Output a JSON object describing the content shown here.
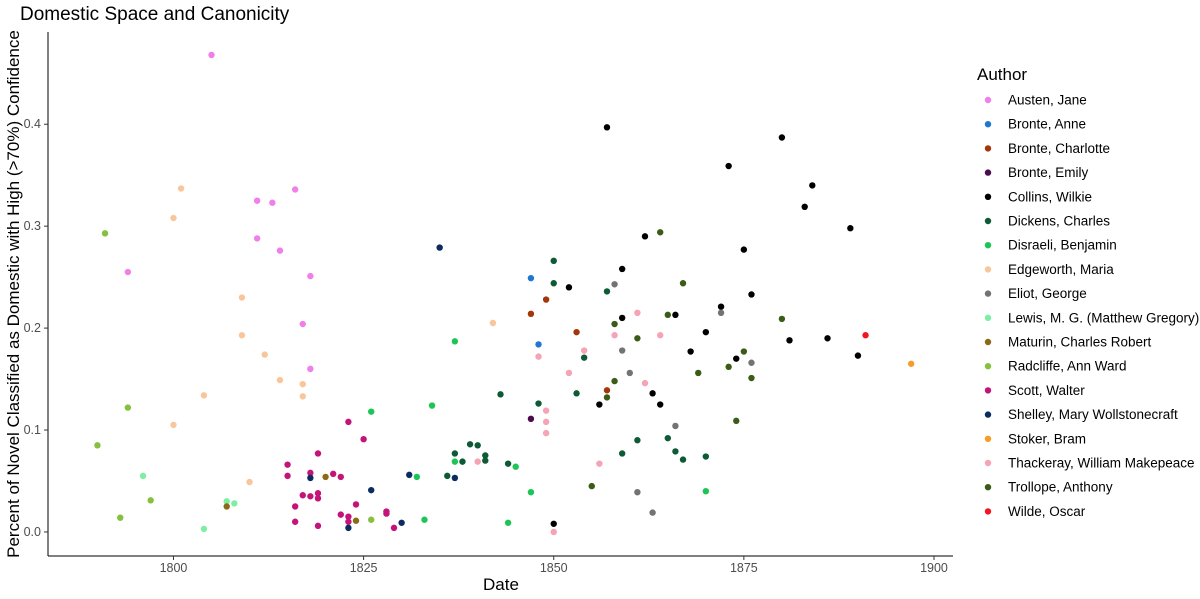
{
  "chart_data": {
    "type": "scatter",
    "title": "Domestic Space and Canonicity",
    "xlabel": "Date",
    "ylabel": "Percent of Novel Classified as Domestic with High (>70%) Confidence",
    "xlim": [
      1783.5,
      1902.5
    ],
    "ylim": [
      -0.0236,
      0.4905
    ],
    "xticks": [
      1800,
      1825,
      1850,
      1875,
      1900
    ],
    "yticks": [
      0.0,
      0.1,
      0.2,
      0.3,
      0.4
    ],
    "ytick_labels": [
      "0.0",
      "0.1",
      "0.2",
      "0.3",
      "0.4"
    ],
    "grid": false,
    "legend_position": "right",
    "legend_title": "Author",
    "series": [
      {
        "name": "Austen, Jane",
        "color": "#F07FEA",
        "points": [
          [
            1805,
            0.468
          ],
          [
            1794,
            0.255
          ],
          [
            1811,
            0.325
          ],
          [
            1813,
            0.323
          ],
          [
            1816,
            0.336
          ],
          [
            1811,
            0.288
          ],
          [
            1814,
            0.276
          ],
          [
            1818,
            0.251
          ],
          [
            1817,
            0.204
          ],
          [
            1818,
            0.16
          ]
        ]
      },
      {
        "name": "Bronte, Anne",
        "color": "#1F76D3",
        "points": [
          [
            1847,
            0.249
          ],
          [
            1848,
            0.184
          ]
        ]
      },
      {
        "name": "Bronte, Charlotte",
        "color": "#A3360B",
        "points": [
          [
            1847,
            0.214
          ],
          [
            1849,
            0.228
          ],
          [
            1853,
            0.196
          ],
          [
            1857,
            0.139
          ]
        ]
      },
      {
        "name": "Bronte, Emily",
        "color": "#4C0B4D",
        "points": [
          [
            1847,
            0.111
          ]
        ]
      },
      {
        "name": "Collins, Wilkie",
        "color": "#000000",
        "points": [
          [
            1857,
            0.397
          ],
          [
            1852,
            0.24
          ],
          [
            1859,
            0.258
          ],
          [
            1862,
            0.29
          ],
          [
            1859,
            0.21
          ],
          [
            1856,
            0.125
          ],
          [
            1863,
            0.136
          ],
          [
            1864,
            0.125
          ],
          [
            1866,
            0.213
          ],
          [
            1868,
            0.177
          ],
          [
            1870,
            0.196
          ],
          [
            1872,
            0.221
          ],
          [
            1873,
            0.359
          ],
          [
            1874,
            0.17
          ],
          [
            1875,
            0.277
          ],
          [
            1876,
            0.233
          ],
          [
            1880,
            0.387
          ],
          [
            1881,
            0.188
          ],
          [
            1883,
            0.319
          ],
          [
            1884,
            0.34
          ],
          [
            1886,
            0.19
          ],
          [
            1889,
            0.298
          ],
          [
            1890,
            0.173
          ],
          [
            1850,
            0.008
          ]
        ]
      },
      {
        "name": "Dickens, Charles",
        "color": "#0C5B35",
        "points": [
          [
            1836,
            0.055
          ],
          [
            1837,
            0.077
          ],
          [
            1838,
            0.069
          ],
          [
            1839,
            0.086
          ],
          [
            1840,
            0.085
          ],
          [
            1841,
            0.075
          ],
          [
            1841,
            0.07
          ],
          [
            1843,
            0.135
          ],
          [
            1844,
            0.067
          ],
          [
            1848,
            0.126
          ],
          [
            1850,
            0.266
          ],
          [
            1850,
            0.244
          ],
          [
            1853,
            0.136
          ],
          [
            1854,
            0.171
          ],
          [
            1857,
            0.236
          ],
          [
            1859,
            0.077
          ],
          [
            1861,
            0.09
          ],
          [
            1865,
            0.092
          ],
          [
            1866,
            0.079
          ],
          [
            1867,
            0.071
          ],
          [
            1870,
            0.074
          ]
        ]
      },
      {
        "name": "Disraeli, Benjamin",
        "color": "#1DC456",
        "points": [
          [
            1826,
            0.118
          ],
          [
            1832,
            0.054
          ],
          [
            1833,
            0.012
          ],
          [
            1834,
            0.124
          ],
          [
            1837,
            0.187
          ],
          [
            1837,
            0.069
          ],
          [
            1844,
            0.009
          ],
          [
            1845,
            0.064
          ],
          [
            1847,
            0.039
          ],
          [
            1870,
            0.04
          ]
        ]
      },
      {
        "name": "Edgeworth, Maria",
        "color": "#F9C69B",
        "points": [
          [
            1801,
            0.337
          ],
          [
            1800,
            0.308
          ],
          [
            1809,
            0.23
          ],
          [
            1809,
            0.193
          ],
          [
            1812,
            0.174
          ],
          [
            1814,
            0.149
          ],
          [
            1817,
            0.145
          ],
          [
            1817,
            0.133
          ],
          [
            1804,
            0.134
          ],
          [
            1800,
            0.105
          ],
          [
            1810,
            0.049
          ],
          [
            1842,
            0.205
          ]
        ]
      },
      {
        "name": "Eliot, George",
        "color": "#737373",
        "points": [
          [
            1858,
            0.243
          ],
          [
            1859,
            0.178
          ],
          [
            1860,
            0.156
          ],
          [
            1861,
            0.039
          ],
          [
            1863,
            0.019
          ],
          [
            1866,
            0.104
          ],
          [
            1872,
            0.215
          ],
          [
            1876,
            0.166
          ]
        ]
      },
      {
        "name": "Lewis, M. G. (Matthew Gregory)",
        "color": "#7BF0A2",
        "points": [
          [
            1796,
            0.055
          ],
          [
            1807,
            0.03
          ],
          [
            1808,
            0.028
          ],
          [
            1804,
            0.003
          ]
        ]
      },
      {
        "name": "Maturin, Charles Robert",
        "color": "#8A6A16",
        "points": [
          [
            1807,
            0.025
          ],
          [
            1820,
            0.054
          ],
          [
            1824,
            0.011
          ]
        ]
      },
      {
        "name": "Radcliffe, Ann Ward",
        "color": "#86C03C",
        "points": [
          [
            1791,
            0.293
          ],
          [
            1790,
            0.085
          ],
          [
            1794,
            0.122
          ],
          [
            1797,
            0.031
          ],
          [
            1793,
            0.014
          ],
          [
            1826,
            0.012
          ]
        ]
      },
      {
        "name": "Scott, Walter",
        "color": "#C4147A",
        "points": [
          [
            1815,
            0.066
          ],
          [
            1815,
            0.055
          ],
          [
            1816,
            0.025
          ],
          [
            1816,
            0.01
          ],
          [
            1817,
            0.036
          ],
          [
            1818,
            0.058
          ],
          [
            1818,
            0.035
          ],
          [
            1819,
            0.077
          ],
          [
            1819,
            0.038
          ],
          [
            1819,
            0.033
          ],
          [
            1819,
            0.006
          ],
          [
            1821,
            0.057
          ],
          [
            1822,
            0.054
          ],
          [
            1822,
            0.017
          ],
          [
            1823,
            0.108
          ],
          [
            1823,
            0.015
          ],
          [
            1823,
            0.01
          ],
          [
            1824,
            0.027
          ],
          [
            1825,
            0.091
          ],
          [
            1828,
            0.02
          ],
          [
            1828,
            0.018
          ],
          [
            1829,
            0.004
          ]
        ]
      },
      {
        "name": "Shelley, Mary Wollstonecraft",
        "color": "#0B2C61",
        "points": [
          [
            1818,
            0.053
          ],
          [
            1823,
            0.004
          ],
          [
            1826,
            0.041
          ],
          [
            1830,
            0.009
          ],
          [
            1831,
            0.056
          ],
          [
            1835,
            0.279
          ],
          [
            1837,
            0.053
          ]
        ]
      },
      {
        "name": "Stoker, Bram",
        "color": "#F79C29",
        "points": [
          [
            1897,
            0.165
          ]
        ]
      },
      {
        "name": "Thackeray, William Makepeace",
        "color": "#F5A3B5",
        "points": [
          [
            1840,
            0.069
          ],
          [
            1848,
            0.172
          ],
          [
            1849,
            0.119
          ],
          [
            1849,
            0.108
          ],
          [
            1849,
            0.097
          ],
          [
            1850,
            0.0
          ],
          [
            1852,
            0.156
          ],
          [
            1854,
            0.178
          ],
          [
            1856,
            0.067
          ],
          [
            1858,
            0.193
          ],
          [
            1861,
            0.215
          ],
          [
            1862,
            0.146
          ],
          [
            1864,
            0.193
          ]
        ]
      },
      {
        "name": "Trollope, Anthony",
        "color": "#3A5C17",
        "points": [
          [
            1855,
            0.045
          ],
          [
            1857,
            0.132
          ],
          [
            1858,
            0.148
          ],
          [
            1858,
            0.204
          ],
          [
            1861,
            0.19
          ],
          [
            1864,
            0.294
          ],
          [
            1865,
            0.213
          ],
          [
            1867,
            0.244
          ],
          [
            1869,
            0.156
          ],
          [
            1873,
            0.162
          ],
          [
            1874,
            0.109
          ],
          [
            1875,
            0.177
          ],
          [
            1876,
            0.151
          ],
          [
            1880,
            0.209
          ]
        ]
      },
      {
        "name": "Wilde, Oscar",
        "color": "#F21625",
        "points": [
          [
            1891,
            0.193
          ]
        ]
      }
    ]
  }
}
